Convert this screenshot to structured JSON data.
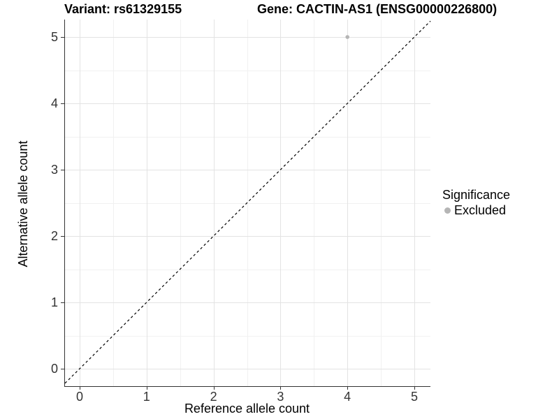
{
  "titles": {
    "variant": "Variant: rs61329155",
    "gene": "Gene: CACTIN-AS1 (ENSG00000226800)"
  },
  "chart_data": {
    "type": "scatter",
    "title_left": "Variant: rs61329155",
    "title_right": "Gene: CACTIN-AS1 (ENSG00000226800)",
    "xlabel": "Reference allele count",
    "ylabel": "Alternative allele count",
    "x_ticks": [
      "0",
      "1",
      "2",
      "3",
      "4",
      "5"
    ],
    "y_ticks": [
      "0",
      "1",
      "2",
      "3",
      "4",
      "5"
    ],
    "xlim": [
      -0.22,
      5.25
    ],
    "ylim": [
      -0.26,
      5.26
    ],
    "grid": "major and minor gridlines, light gray on white panel",
    "legend_position": "right",
    "series": [
      {
        "name": "Excluded",
        "marker": "circle",
        "color": "#b5b5b5",
        "points": [
          {
            "x": 4,
            "y": 5
          }
        ]
      }
    ],
    "reference_line": {
      "kind": "identity y=x",
      "style": "dashed",
      "color": "#000000",
      "from": {
        "x": 0,
        "y": 0
      },
      "to": {
        "x": 5,
        "y": 5
      }
    }
  },
  "legend": {
    "title": "Significance",
    "items": [
      {
        "label": "Excluded",
        "color": "#b5b5b5"
      }
    ]
  },
  "colors": {
    "background": "#ffffff",
    "grid_major": "#e3e3e3",
    "grid_minor": "#f1f1f1",
    "axis_line": "#333333",
    "tick_text": "#333333",
    "point": "#b5b5b5",
    "title_text": "#000000"
  }
}
